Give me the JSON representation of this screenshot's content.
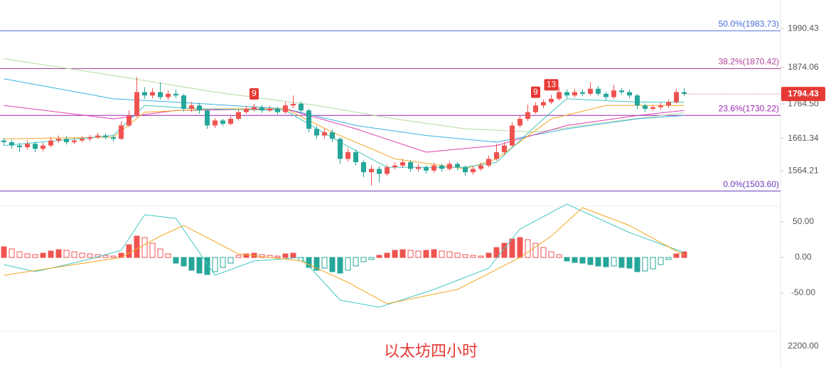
{
  "chart_data": [
    {
      "type": "candlestick",
      "title": "以太坊四小时",
      "up_color": "#ef5350",
      "down_color": "#26a69a",
      "open": [
        1655,
        1650,
        1640,
        1635,
        1645,
        1630,
        1640,
        1655,
        1660,
        1650,
        1655,
        1660,
        1665,
        1670,
        1665,
        1660,
        1700,
        1730,
        1800,
        1790,
        1800,
        1785,
        1795,
        1790,
        1750,
        1760,
        1745,
        1700,
        1715,
        1705,
        1720,
        1740,
        1750,
        1755,
        1745,
        1750,
        1740,
        1760,
        1765,
        1745,
        1690,
        1670,
        1680,
        1660,
        1600,
        1620,
        1590,
        1560,
        1570,
        1555,
        1575,
        1580,
        1590,
        1570,
        1575,
        1565,
        1580,
        1570,
        1585,
        1575,
        1560,
        1570,
        1580,
        1600,
        1620,
        1640,
        1700,
        1720,
        1740,
        1760,
        1770,
        1780,
        1800,
        1790,
        1800,
        1795,
        1810,
        1795,
        1785,
        1805,
        1800,
        1790,
        1760,
        1750,
        1755,
        1760,
        1770,
        1800
      ],
      "high": [
        1663,
        1658,
        1648,
        1655,
        1652,
        1648,
        1665,
        1670,
        1668,
        1663,
        1668,
        1672,
        1678,
        1676,
        1672,
        1712,
        1745,
        1845,
        1815,
        1812,
        1830,
        1805,
        1808,
        1795,
        1770,
        1768,
        1750,
        1722,
        1720,
        1728,
        1748,
        1758,
        1765,
        1762,
        1758,
        1756,
        1770,
        1790,
        1772,
        1750,
        1698,
        1690,
        1688,
        1665,
        1632,
        1628,
        1598,
        1580,
        1578,
        1583,
        1590,
        1600,
        1596,
        1584,
        1580,
        1588,
        1586,
        1592,
        1590,
        1580,
        1578,
        1588,
        1610,
        1645,
        1650,
        1710,
        1730,
        1762,
        1770,
        1778,
        1792,
        1815,
        1808,
        1810,
        1808,
        1830,
        1818,
        1802,
        1822,
        1812,
        1808,
        1795,
        1766,
        1762,
        1768,
        1778,
        1810,
        1812
      ],
      "low": [
        1640,
        1630,
        1620,
        1628,
        1620,
        1622,
        1634,
        1648,
        1643,
        1644,
        1650,
        1653,
        1660,
        1658,
        1652,
        1656,
        1695,
        1725,
        1780,
        1782,
        1778,
        1776,
        1782,
        1742,
        1740,
        1735,
        1690,
        1692,
        1698,
        1700,
        1715,
        1735,
        1742,
        1738,
        1740,
        1733,
        1735,
        1752,
        1738,
        1680,
        1660,
        1662,
        1650,
        1585,
        1592,
        1580,
        1545,
        1520,
        1530,
        1548,
        1568,
        1572,
        1562,
        1562,
        1556,
        1558,
        1562,
        1564,
        1566,
        1550,
        1553,
        1564,
        1575,
        1595,
        1612,
        1635,
        1694,
        1714,
        1735,
        1752,
        1764,
        1775,
        1782,
        1784,
        1788,
        1790,
        1788,
        1776,
        1780,
        1792,
        1782,
        1750,
        1740,
        1744,
        1748,
        1752,
        1765,
        1788
      ],
      "close": [
        1650,
        1640,
        1635,
        1645,
        1630,
        1640,
        1655,
        1660,
        1650,
        1655,
        1660,
        1665,
        1670,
        1665,
        1660,
        1700,
        1730,
        1800,
        1790,
        1800,
        1785,
        1795,
        1790,
        1750,
        1760,
        1745,
        1700,
        1715,
        1705,
        1720,
        1740,
        1750,
        1755,
        1745,
        1750,
        1740,
        1760,
        1765,
        1745,
        1690,
        1670,
        1680,
        1660,
        1600,
        1620,
        1590,
        1560,
        1570,
        1555,
        1575,
        1580,
        1590,
        1570,
        1575,
        1565,
        1580,
        1570,
        1585,
        1575,
        1560,
        1570,
        1580,
        1600,
        1620,
        1640,
        1700,
        1720,
        1740,
        1760,
        1770,
        1780,
        1800,
        1790,
        1800,
        1795,
        1810,
        1795,
        1785,
        1805,
        1800,
        1790,
        1760,
        1750,
        1755,
        1760,
        1770,
        1800,
        1794.43
      ],
      "lines": [
        {
          "color": "#b5dba0",
          "x": [
            0,
            14,
            27,
            40,
            50,
            59,
            68,
            77,
            87
          ],
          "values": [
            1900,
            1850,
            1800,
            1760,
            1720,
            1690,
            1680,
            1710,
            1738
          ]
        },
        {
          "color": "#3ab0e0",
          "x": [
            0,
            14,
            22,
            36,
            45,
            54,
            63,
            72,
            81,
            87
          ],
          "values": [
            1840,
            1780,
            1770,
            1750,
            1700,
            1670,
            1650,
            1690,
            1720,
            1730
          ]
        },
        {
          "color": "#e040b0",
          "x": [
            0,
            14,
            22,
            36,
            45,
            54,
            63,
            72,
            81,
            87
          ],
          "values": [
            1760,
            1720,
            1745,
            1750,
            1690,
            1620,
            1640,
            1700,
            1730,
            1745
          ]
        },
        {
          "color": "#f5a623",
          "x": [
            0,
            14,
            18,
            27,
            36,
            42,
            50,
            59,
            63,
            70,
            77,
            87
          ],
          "values": [
            1660,
            1665,
            1740,
            1750,
            1750,
            1680,
            1600,
            1570,
            1600,
            1720,
            1760,
            1760
          ]
        },
        {
          "color": "#40c8c0",
          "x": [
            0,
            14,
            18,
            25,
            36,
            43,
            49,
            59,
            63,
            69,
            72,
            81,
            87
          ],
          "values": [
            1640,
            1670,
            1760,
            1750,
            1745,
            1650,
            1575,
            1575,
            1590,
            1720,
            1780,
            1770,
            1770
          ]
        }
      ],
      "levels": [
        {
          "label": "50.0%(1983.73)",
          "value": 1983.73,
          "color": "#4a6fd9"
        },
        {
          "label": "38.2%(1870.42)",
          "value": 1870.42,
          "color": "#b0409a"
        },
        {
          "label": "23.6%(1730.22)",
          "value": 1730.22,
          "color": "#9c27b0"
        },
        {
          "label": "0.0%(1503.60)",
          "value": 1503.6,
          "color": "#6a3ab7"
        }
      ],
      "markers": [
        {
          "text": "9",
          "index": 32
        },
        {
          "text": "9",
          "index": 68
        },
        {
          "text": "13",
          "index": 70
        }
      ],
      "current_price": 1794.43,
      "ylim": [
        1458,
        2076
      ],
      "yticks": [
        1990.43,
        1874.06,
        {
          "value": 1764.5,
          "label": "1764.50"
        },
        1661.34,
        1564.21
      ]
    },
    {
      "type": "macd",
      "up_color": "#ef5350",
      "down_color": "#26a69a",
      "values": [
        15,
        12,
        8,
        5,
        4,
        6,
        9,
        11,
        10,
        8,
        6,
        5,
        4,
        3,
        2,
        6,
        18,
        30,
        28,
        20,
        12,
        5,
        -8,
        -12,
        -18,
        -22,
        -24,
        -20,
        -14,
        -8,
        3,
        5,
        6,
        4,
        3,
        2,
        5,
        6,
        -5,
        -14,
        -18,
        -15,
        -20,
        -22,
        -18,
        -12,
        -6,
        -3,
        3,
        6,
        10,
        11,
        10,
        9,
        10,
        11,
        9,
        8,
        6,
        4,
        3,
        2,
        6,
        14,
        20,
        26,
        28,
        25,
        20,
        14,
        8,
        4,
        -5,
        -7,
        -8,
        -10,
        -12,
        -13,
        -12,
        -14,
        -15,
        -20,
        -19,
        -16,
        -10,
        -3,
        5,
        8
      ],
      "lines": [
        {
          "color": "#40c8c0",
          "x": [
            0,
            4,
            10,
            15,
            18,
            22,
            27,
            32,
            38,
            43,
            48,
            55,
            62,
            66,
            72,
            80,
            87
          ],
          "values": [
            -10,
            -20,
            -5,
            10,
            60,
            55,
            -25,
            -5,
            0,
            -60,
            -70,
            -45,
            -15,
            40,
            75,
            35,
            7
          ]
        },
        {
          "color": "#f5a623",
          "x": [
            0,
            6,
            15,
            20,
            23,
            30,
            38,
            44,
            49,
            58,
            66,
            70,
            74,
            80,
            87
          ],
          "values": [
            -25,
            -15,
            0,
            30,
            45,
            5,
            -5,
            -35,
            -65,
            -45,
            0,
            30,
            70,
            45,
            3
          ]
        }
      ],
      "ylim": [
        -100,
        73
      ],
      "yticks": [
        {
          "value": 50,
          "label": "50.00"
        },
        {
          "value": 0,
          "label": "0.00"
        },
        {
          "value": -50,
          "label": "-50.00"
        }
      ]
    },
    {
      "type": "axis",
      "yticks": [
        {
          "value": 2200,
          "label": "2200.00"
        }
      ]
    }
  ]
}
